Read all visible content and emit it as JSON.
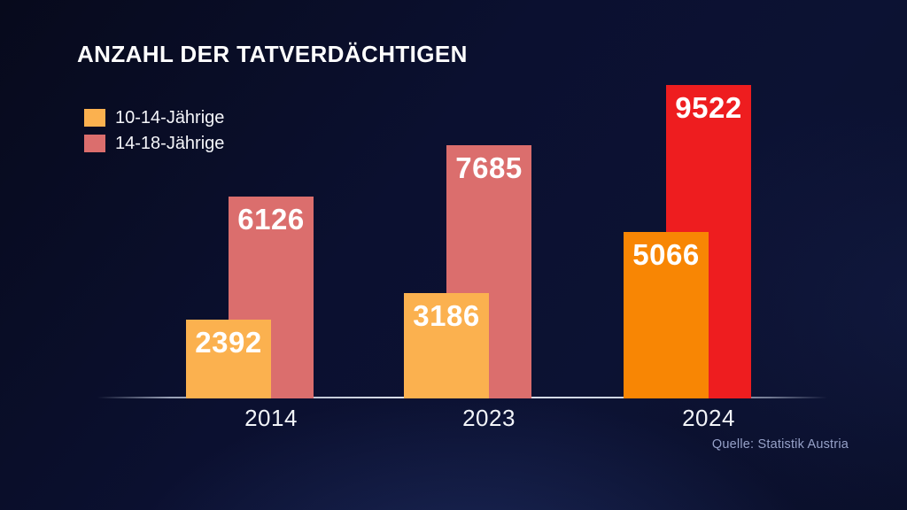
{
  "title": "ANZAHL DER TATVERDÄCHTIGEN",
  "source": "Quelle: Statistik Austria",
  "colors": {
    "background_base": "#0B1030",
    "title_text": "#FFFFFF",
    "axis_line": "#C9D2E4",
    "year_label_text": "#F2F4F8",
    "value_label_text": "#FFFFFF",
    "source_text": "#96A1C8",
    "orange_default": "#FBB14F",
    "salmon_default": "#DB6E6D",
    "orange_highlight": "#F88604",
    "red_highlight": "#EE1D1F"
  },
  "legend": {
    "items": [
      {
        "label": "10-14-Jährige",
        "color": "#FBB14F"
      },
      {
        "label": "14-18-Jährige",
        "color": "#DB6E6D"
      }
    ]
  },
  "chart_data": {
    "type": "bar",
    "title": "ANZAHL DER TATVERDÄCHTIGEN",
    "categories": [
      "2014",
      "2023",
      "2024"
    ],
    "series": [
      {
        "name": "10-14-Jährige",
        "values": [
          2392,
          3186,
          5066
        ],
        "bar_colors": [
          "#FBB14F",
          "#FBB14F",
          "#F88604"
        ]
      },
      {
        "name": "14-18-Jährige",
        "values": [
          6126,
          7685,
          9522
        ],
        "bar_colors": [
          "#DB6E6D",
          "#DB6E6D",
          "#EE1D1F"
        ]
      }
    ],
    "value_labels_shown": true,
    "highlighted_category": "2024",
    "ylim": [
      0,
      10000
    ],
    "grid": false,
    "legend_position": "top-left",
    "source": "Quelle: Statistik Austria"
  }
}
